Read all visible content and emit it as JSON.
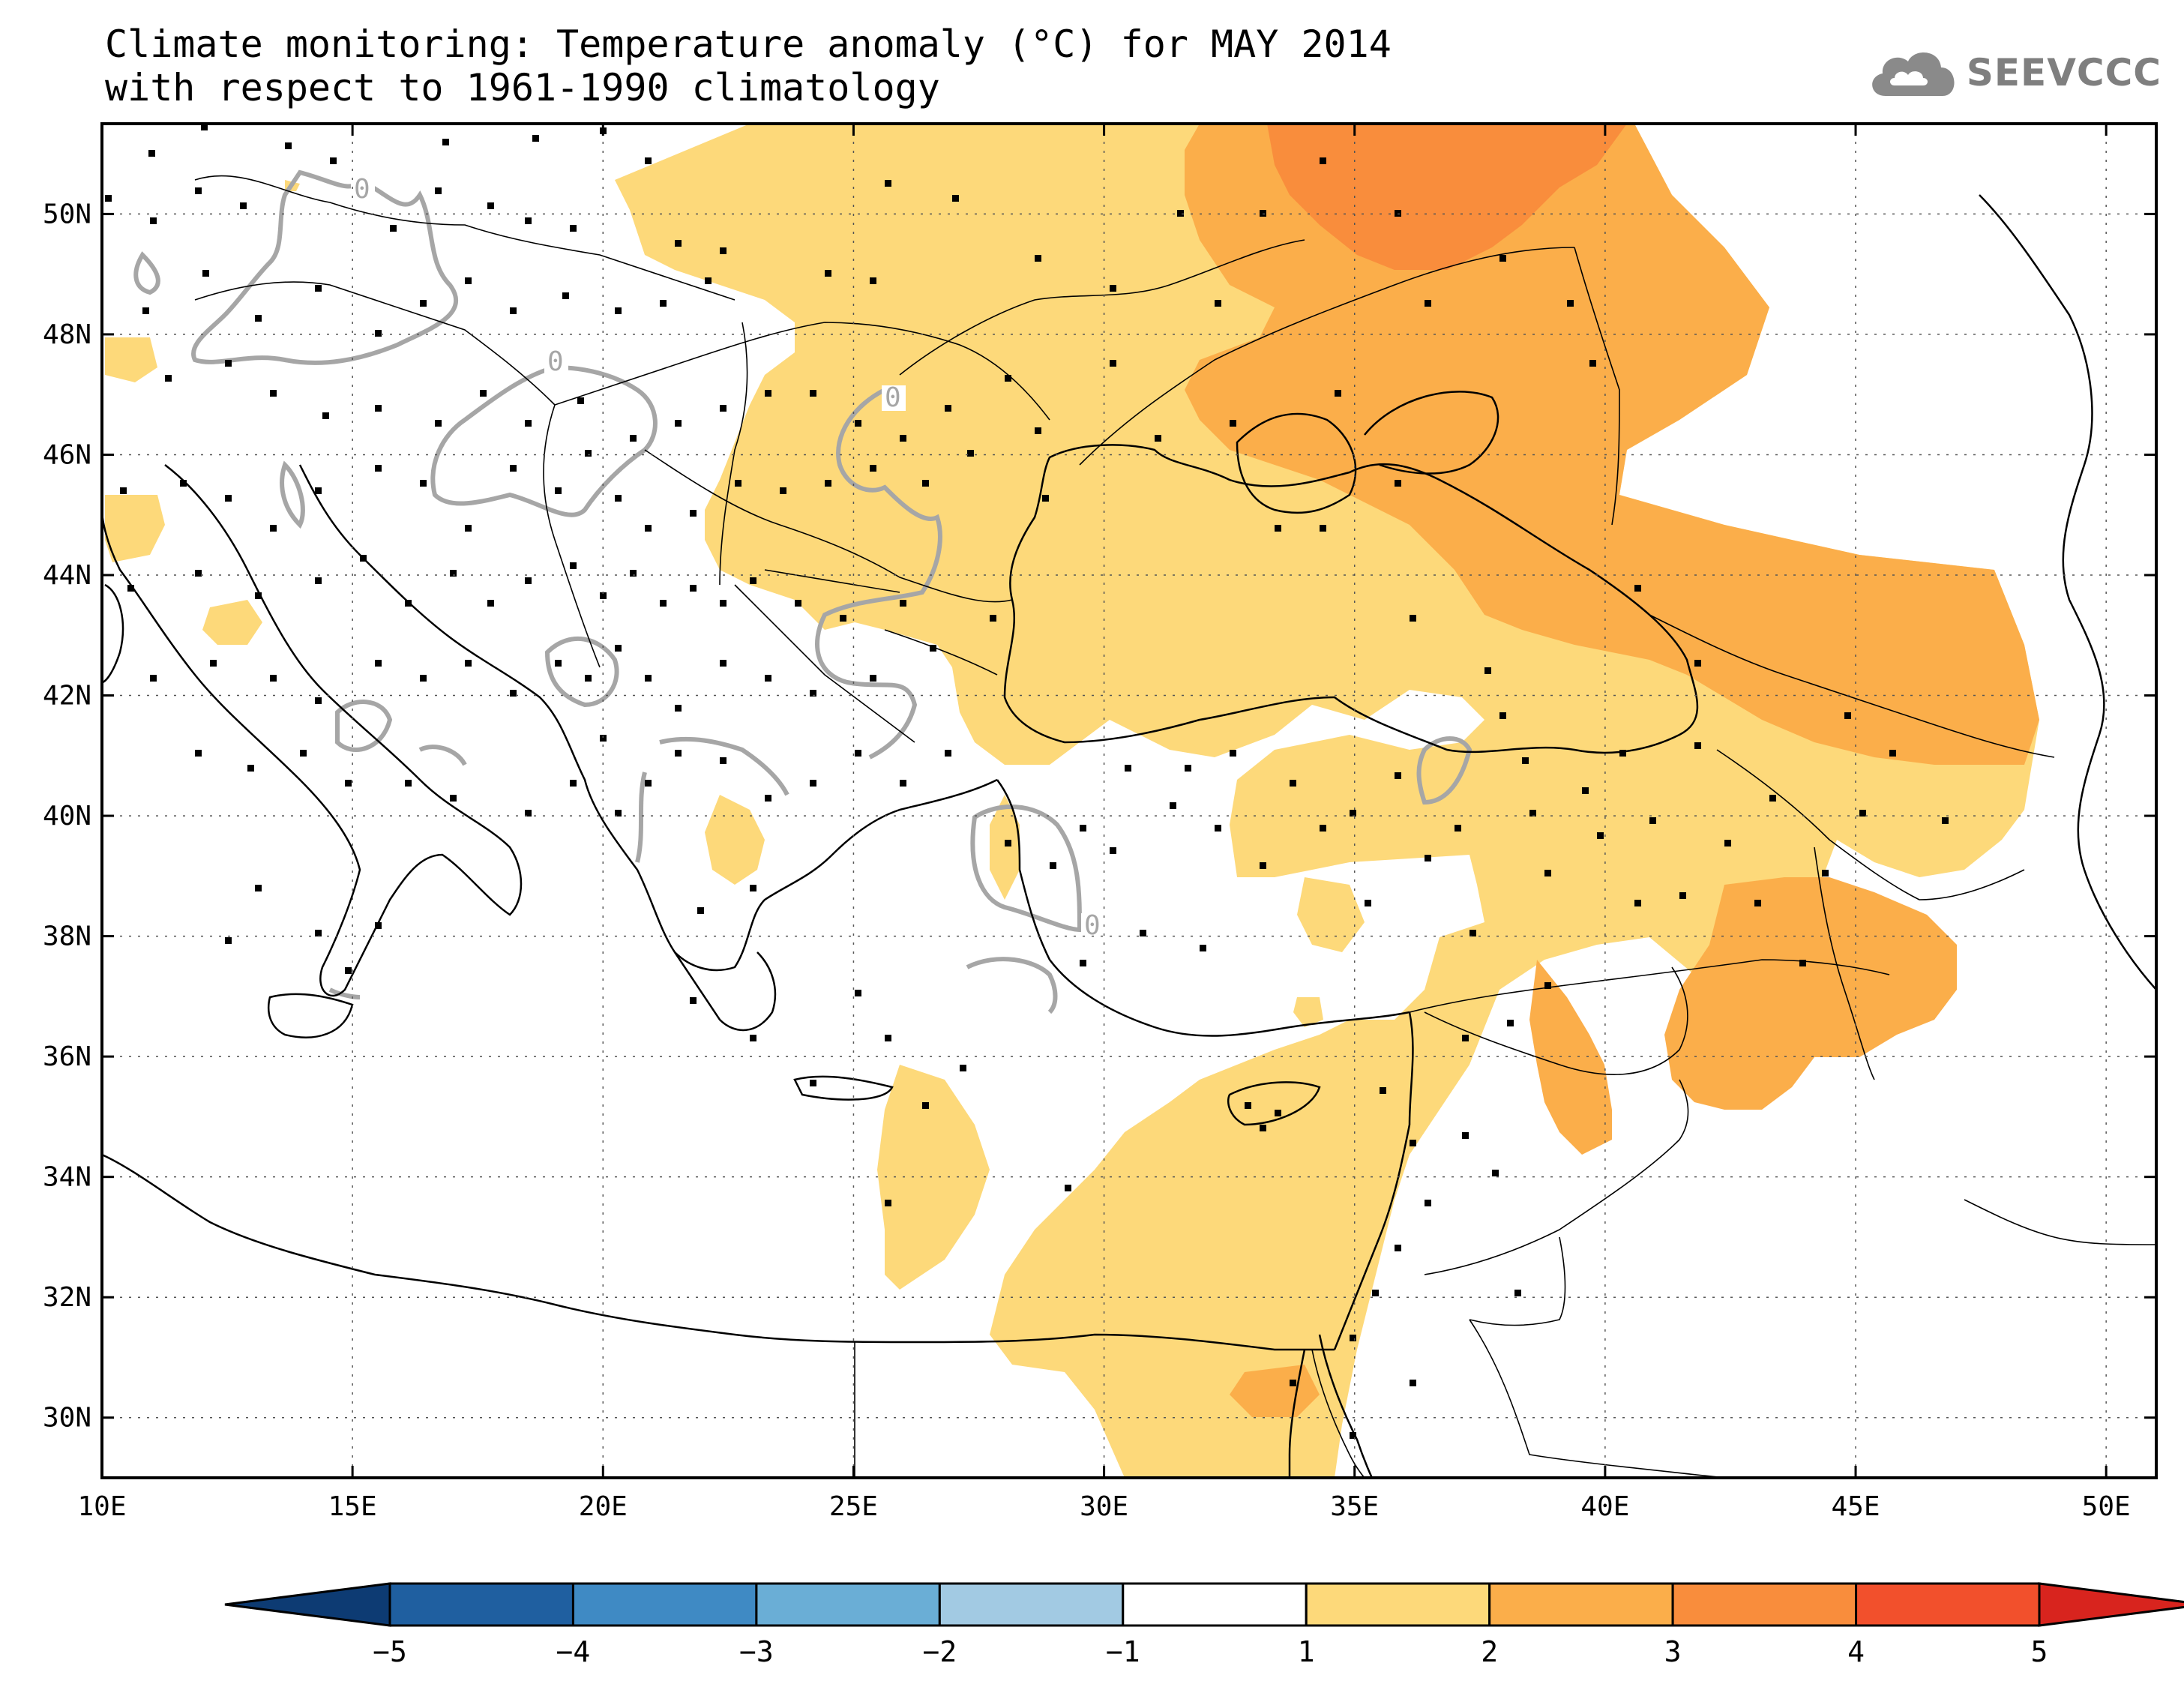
{
  "title": {
    "line1": "Climate monitoring: Temperature anomaly (°C) for MAY 2014",
    "line2": "with respect to 1961-1990 climatology"
  },
  "logo": {
    "text": "SEEVCCC",
    "icon": "cloud-icon"
  },
  "map": {
    "lon_range": [
      10,
      51
    ],
    "lat_range": [
      29,
      51.5
    ],
    "lon_ticks": [
      "10E",
      "15E",
      "20E",
      "25E",
      "30E",
      "35E",
      "40E",
      "45E",
      "50E"
    ],
    "lat_ticks": [
      "30N",
      "32N",
      "34N",
      "36N",
      "38N",
      "40N",
      "42N",
      "44N",
      "46N",
      "48N",
      "50N"
    ],
    "contour_label": "0"
  },
  "colorbar": {
    "labels": [
      "-5",
      "-4",
      "-3",
      "-2",
      "-1",
      "1",
      "2",
      "3",
      "4",
      "5"
    ],
    "colors": {
      "below_min": "#0d3b73",
      "bins": [
        "#1f5fa0",
        "#3f8ac4",
        "#6aaed6",
        "#a2cae3",
        "#ffffff",
        "#fdd97a",
        "#fbae4a",
        "#f98d3c",
        "#f2502c"
      ],
      "above_max": "#d8241e"
    }
  }
}
